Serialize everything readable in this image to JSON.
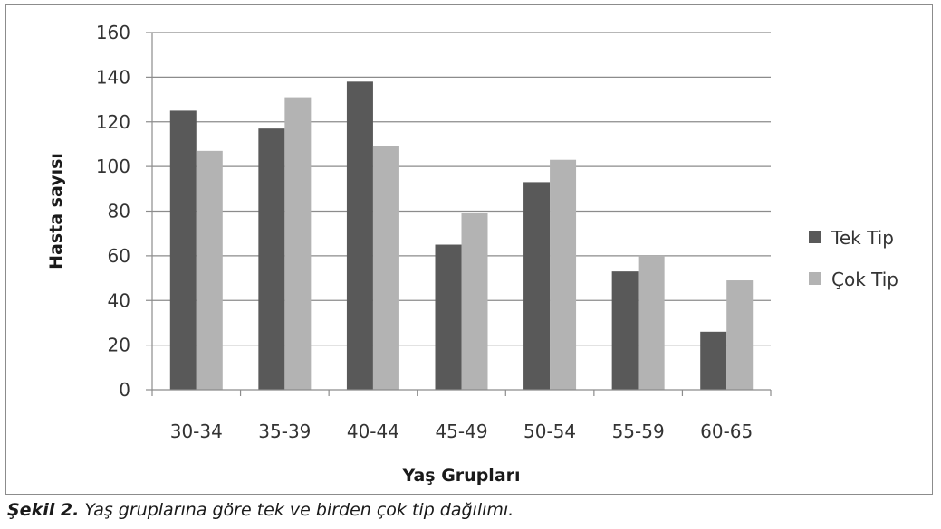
{
  "chart_data": {
    "type": "bar",
    "categories": [
      "30-34",
      "35-39",
      "40-44",
      "45-49",
      "50-54",
      "55-59",
      "60-65"
    ],
    "series": [
      {
        "name": "Tek Tip",
        "color": "#595959",
        "values": [
          125,
          117,
          138,
          65,
          93,
          53,
          26
        ]
      },
      {
        "name": "Çok Tip",
        "color": "#b3b3b3",
        "values": [
          107,
          131,
          109,
          79,
          103,
          60,
          49
        ]
      }
    ],
    "xlabel": "Yaş Grupları",
    "ylabel": "Hasta sayısı",
    "ylim": [
      0,
      160
    ],
    "yticks": [
      "0",
      "20",
      "40",
      "60",
      "80",
      "100",
      "120",
      "140",
      "160"
    ],
    "grid": true,
    "legend_position": "right"
  },
  "caption": {
    "label": "Şekil 2.",
    "text": " Yaş gruplarına göre tek ve birden çok tip dağılımı."
  }
}
